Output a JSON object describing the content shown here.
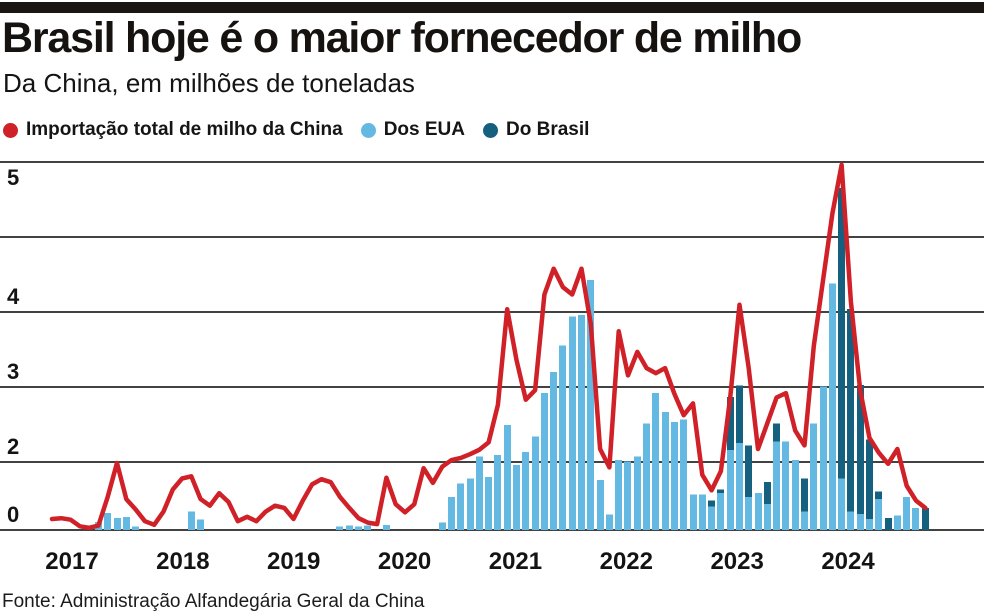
{
  "header": {
    "title": "Brasil hoje é o maior fornecedor de milho",
    "subtitle": "Da China, em milhões de toneladas"
  },
  "source_note": "Fonte: Administração Alfandegária Geral da China",
  "colors": {
    "total_line": "#cf2127",
    "eua_bar": "#63b9e2",
    "brasil_bar": "#15607f",
    "gridline": "#424242",
    "text": "#141414",
    "topbar": "#1c1613"
  },
  "legend": {
    "items": [
      {
        "label": "Importação total de milho da China",
        "color": "#cf2127",
        "marker": "circle"
      },
      {
        "label": "Dos EUA",
        "color": "#63b9e2",
        "marker": "circle"
      },
      {
        "label": "Do Brasil",
        "color": "#15607f",
        "marker": "circle"
      }
    ]
  },
  "chart_data": {
    "type": "bar+line",
    "unit": "milhões de toneladas",
    "x_period": "monthly, 2017-2024",
    "grid": "horizontal",
    "legend_position": "top",
    "ylim": [
      0,
      5
    ],
    "y_ticks": [
      {
        "label": "5",
        "line": 0,
        "below": true
      },
      {
        "label": "4",
        "line": 2,
        "below": false
      },
      {
        "label": "3",
        "line": 3,
        "below": false
      },
      {
        "label": "2",
        "line": 4,
        "below": false
      },
      {
        "label": "0",
        "line": 5,
        "below": false
      }
    ],
    "x_tick_labels": [
      "2017",
      "2018",
      "2019",
      "2020",
      "2021",
      "2022",
      "2023",
      "2024"
    ],
    "series": [
      {
        "name": "Importação total de milho da China",
        "type": "line",
        "color": "#cf2127",
        "values": [
          0.15,
          0.16,
          0.14,
          0.05,
          0.03,
          0.06,
          0.45,
          0.91,
          0.42,
          0.28,
          0.12,
          0.07,
          0.25,
          0.55,
          0.7,
          0.73,
          0.42,
          0.33,
          0.5,
          0.38,
          0.12,
          0.18,
          0.12,
          0.25,
          0.33,
          0.3,
          0.15,
          0.4,
          0.62,
          0.69,
          0.65,
          0.45,
          0.3,
          0.16,
          0.1,
          0.08,
          0.71,
          0.35,
          0.24,
          0.35,
          0.84,
          0.64,
          0.86,
          0.95,
          0.98,
          1.03,
          1.09,
          1.19,
          1.7,
          3.0,
          2.31,
          1.77,
          1.9,
          3.2,
          3.55,
          3.3,
          3.2,
          3.55,
          2.8,
          1.1,
          0.85,
          2.7,
          2.1,
          2.42,
          2.2,
          2.13,
          2.2,
          1.85,
          1.56,
          1.72,
          0.75,
          0.54,
          0.8,
          1.8,
          3.06,
          2.2,
          1.1,
          1.45,
          1.8,
          1.86,
          1.35,
          1.15,
          2.5,
          3.4,
          4.3,
          4.96,
          3.1,
          1.9,
          1.25,
          1.05,
          0.9,
          1.1,
          0.6,
          0.4,
          0.3
        ]
      },
      {
        "name": "Dos EUA",
        "type": "bar",
        "stack": "base",
        "color": "#63b9e2",
        "values": [
          0,
          0,
          0,
          0,
          0,
          0.11,
          0.23,
          0.16,
          0.18,
          0.05,
          0,
          0,
          0,
          0,
          0,
          0.25,
          0.14,
          0,
          0,
          0,
          0,
          0,
          0,
          0,
          0,
          0,
          0,
          0,
          0,
          0,
          0,
          0.05,
          0.06,
          0.05,
          0.06,
          0,
          0.07,
          0,
          0,
          0,
          0,
          0,
          0.1,
          0.45,
          0.63,
          0.7,
          1.0,
          0.72,
          1.02,
          1.43,
          0.88,
          1.06,
          1.27,
          1.86,
          2.15,
          2.51,
          2.9,
          2.92,
          3.4,
          0.68,
          0.21,
          0.95,
          0.93,
          1.0,
          1.45,
          1.86,
          1.6,
          1.47,
          1.5,
          0.48,
          0.48,
          0.32,
          0.5,
          1.09,
          1.18,
          0.45,
          0.5,
          0.35,
          1.2,
          1.2,
          0.95,
          0.25,
          1.45,
          1.95,
          3.35,
          0.7,
          0.25,
          0.22,
          0.15,
          0.42,
          0,
          0.2,
          0.45,
          0.3,
          0
        ]
      },
      {
        "name": "Do Brasil",
        "type": "bar",
        "stack": "top",
        "color": "#15607f",
        "values": [
          0,
          0,
          0,
          0,
          0,
          0,
          0,
          0,
          0,
          0,
          0,
          0,
          0,
          0,
          0,
          0,
          0,
          0,
          0,
          0,
          0,
          0,
          0,
          0,
          0,
          0,
          0,
          0,
          0,
          0,
          0,
          0,
          0,
          0,
          0,
          0,
          0,
          0,
          0,
          0,
          0,
          0,
          0,
          0,
          0,
          0,
          0,
          0,
          0,
          0,
          0,
          0,
          0,
          0,
          0,
          0,
          0,
          0,
          0,
          0,
          0,
          0,
          0,
          0,
          0,
          0,
          0,
          0,
          0,
          0,
          0,
          0.08,
          0.05,
          0.72,
          0.78,
          0.7,
          0,
          0.3,
          0.25,
          0,
          0,
          0.45,
          0,
          0,
          0,
          3.95,
          2.75,
          1.75,
          1.08,
          0.1,
          0.16,
          0,
          0,
          0,
          0.3
        ]
      }
    ]
  }
}
